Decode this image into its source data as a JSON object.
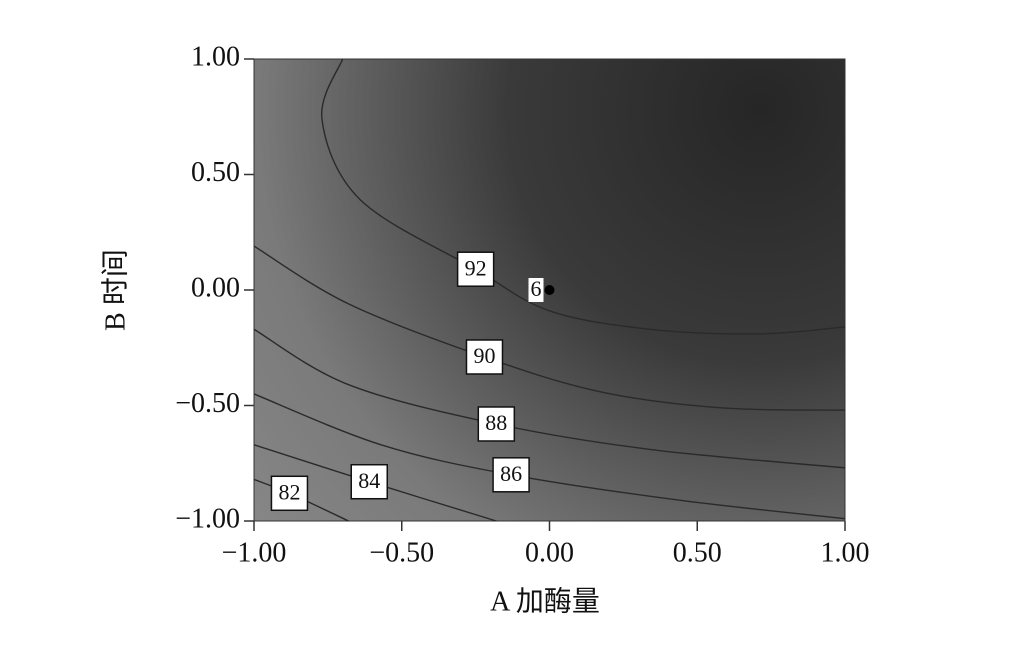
{
  "chart_data": {
    "type": "contour",
    "xlabel": "A 加酶量",
    "ylabel": "B 时间",
    "xlim": [
      -1,
      1
    ],
    "ylim": [
      -1,
      1
    ],
    "xticks": [
      {
        "value": -1,
        "label": "−1.00"
      },
      {
        "value": -0.5,
        "label": "−0.50"
      },
      {
        "value": 0,
        "label": "0.00"
      },
      {
        "value": 0.5,
        "label": "0.50"
      },
      {
        "value": 1,
        "label": "1.00"
      }
    ],
    "yticks": [
      {
        "value": -1,
        "label": "−1.00"
      },
      {
        "value": -0.5,
        "label": "−0.50"
      },
      {
        "value": 0,
        "label": "0.00"
      },
      {
        "value": 0.5,
        "label": "0.50"
      },
      {
        "value": 1,
        "label": "1.00"
      }
    ],
    "line_color": "#2a2a2a",
    "contours": [
      {
        "level": 92,
        "x": [
          -0.7,
          -0.77,
          -0.64,
          -0.25,
          0,
          0.34,
          0.71,
          1
        ],
        "y": [
          1,
          0.74,
          0.39,
          0.09,
          -0.09,
          -0.17,
          -0.19,
          -0.16
        ]
      },
      {
        "level": 90,
        "x": [
          -1,
          -0.68,
          -0.22,
          0.17,
          0.58,
          1
        ],
        "y": [
          0.19,
          -0.06,
          -0.29,
          -0.44,
          -0.51,
          -0.52
        ]
      },
      {
        "level": 88,
        "x": [
          -1,
          -0.68,
          -0.18,
          0.34,
          1
        ],
        "y": [
          -0.17,
          -0.41,
          -0.58,
          -0.69,
          -0.77
        ]
      },
      {
        "level": 86,
        "x": [
          -1,
          -0.57,
          -0.13,
          0.44,
          1
        ],
        "y": [
          -0.45,
          -0.67,
          -0.8,
          -0.91,
          -0.99
        ]
      },
      {
        "level": 84,
        "x": [
          -1,
          -0.61,
          -0.18
        ],
        "y": [
          -0.67,
          -0.83,
          -1
        ]
      },
      {
        "level": 82,
        "x": [
          -1,
          -0.88,
          -0.68
        ],
        "y": [
          -0.82,
          -0.88,
          -1
        ]
      }
    ],
    "center_point": {
      "x": 0,
      "y": 0,
      "count": 6
    }
  }
}
